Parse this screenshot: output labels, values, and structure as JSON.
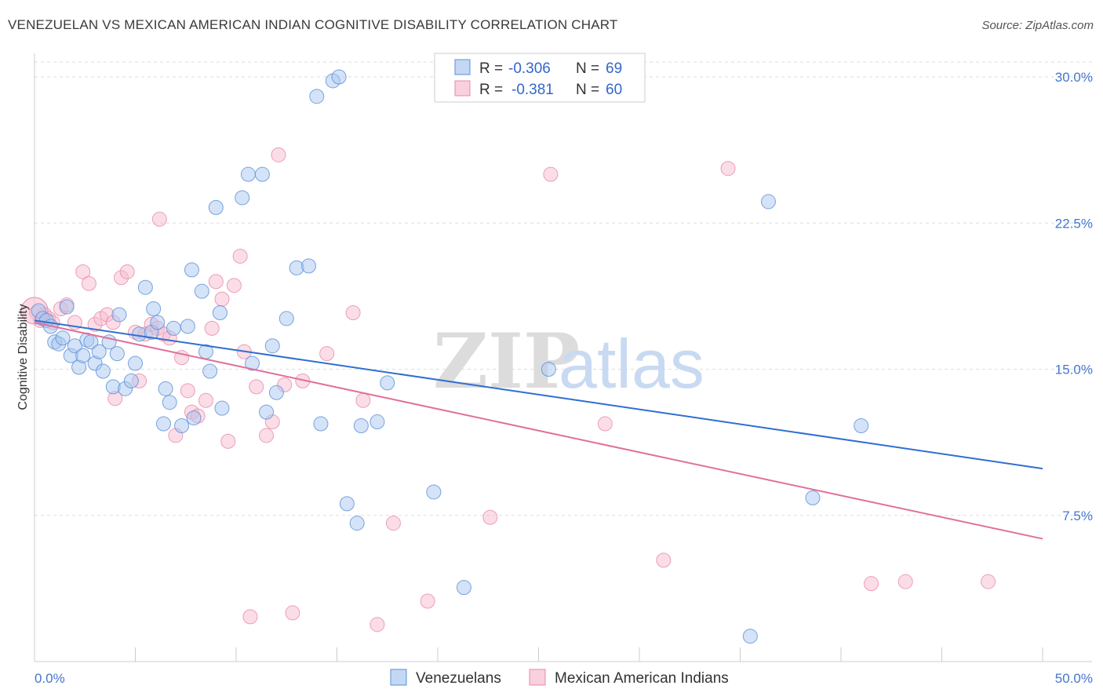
{
  "header": {
    "title": "VENEZUELAN VS MEXICAN AMERICAN INDIAN COGNITIVE DISABILITY CORRELATION CHART",
    "source": "Source: ZipAtlas.com"
  },
  "watermark": {
    "zip": "ZIP",
    "atlas": "atlas"
  },
  "colors": {
    "blue_fill": "#aac8f0",
    "blue_stroke": "#5b8fd8",
    "blue_line": "#2f6fcf",
    "pink_fill": "#f7bcd0",
    "pink_stroke": "#e889a8",
    "pink_line": "#e0709a",
    "tick_label": "#4477cc",
    "grid": "#dddddd"
  },
  "legend": {
    "r_label": "R =",
    "n_label": "N =",
    "entries": [
      {
        "r": "-0.306",
        "n": "69"
      },
      {
        "r": "-0.381",
        "n": "60"
      }
    ]
  },
  "chart_data": {
    "type": "scatter",
    "title": "VENEZUELAN VS MEXICAN AMERICAN INDIAN COGNITIVE DISABILITY CORRELATION CHART",
    "xlabel": "",
    "ylabel": "Cognitive Disability",
    "xlim": [
      0,
      50
    ],
    "ylim": [
      0,
      31
    ],
    "x_tick_labels": [
      "0.0%",
      "50.0%"
    ],
    "y_ticks": [
      7.5,
      15.0,
      22.5,
      30.0
    ],
    "y_tick_labels": [
      "7.5%",
      "15.0%",
      "22.5%",
      "30.0%"
    ],
    "grid": "horizontal dashed",
    "legend_position": "top-center",
    "series": [
      {
        "name": "Venezuelans",
        "color": "#aac8f0",
        "trend": {
          "x": [
            0,
            50
          ],
          "y": [
            17.5,
            9.9
          ]
        },
        "points": [
          [
            0.2,
            18.0
          ],
          [
            0.4,
            17.6
          ],
          [
            0.6,
            17.5
          ],
          [
            0.8,
            17.2
          ],
          [
            1.0,
            16.4
          ],
          [
            1.2,
            16.3
          ],
          [
            1.4,
            16.6
          ],
          [
            1.6,
            18.2
          ],
          [
            1.8,
            15.7
          ],
          [
            2.0,
            16.2
          ],
          [
            2.2,
            15.1
          ],
          [
            2.4,
            15.7
          ],
          [
            2.6,
            16.5
          ],
          [
            2.8,
            16.4
          ],
          [
            3.0,
            15.3
          ],
          [
            3.2,
            15.9
          ],
          [
            3.4,
            14.9
          ],
          [
            3.7,
            16.4
          ],
          [
            3.9,
            14.1
          ],
          [
            4.1,
            15.8
          ],
          [
            4.2,
            17.8
          ],
          [
            4.5,
            14.0
          ],
          [
            4.8,
            14.4
          ],
          [
            5.0,
            15.3
          ],
          [
            5.2,
            16.8
          ],
          [
            5.5,
            19.2
          ],
          [
            5.8,
            16.9
          ],
          [
            5.9,
            18.1
          ],
          [
            6.1,
            17.4
          ],
          [
            6.4,
            12.2
          ],
          [
            6.5,
            14.0
          ],
          [
            6.7,
            13.3
          ],
          [
            6.9,
            17.1
          ],
          [
            7.3,
            12.1
          ],
          [
            7.6,
            17.2
          ],
          [
            7.9,
            12.5
          ],
          [
            7.8,
            20.1
          ],
          [
            8.3,
            19.0
          ],
          [
            8.5,
            15.9
          ],
          [
            8.7,
            14.9
          ],
          [
            9.0,
            23.3
          ],
          [
            9.2,
            17.9
          ],
          [
            9.3,
            13.0
          ],
          [
            10.3,
            23.8
          ],
          [
            10.8,
            15.3
          ],
          [
            10.6,
            25.0
          ],
          [
            11.3,
            25.0
          ],
          [
            12.0,
            13.8
          ],
          [
            11.5,
            12.8
          ],
          [
            11.8,
            16.2
          ],
          [
            12.5,
            17.6
          ],
          [
            13.0,
            20.2
          ],
          [
            13.6,
            20.3
          ],
          [
            14.0,
            29.0
          ],
          [
            14.8,
            29.8
          ],
          [
            14.2,
            12.2
          ],
          [
            15.1,
            30.0
          ],
          [
            15.5,
            8.1
          ],
          [
            16.2,
            12.1
          ],
          [
            16.0,
            7.1
          ],
          [
            17.0,
            12.3
          ],
          [
            17.5,
            14.3
          ],
          [
            19.8,
            8.7
          ],
          [
            21.3,
            3.8
          ],
          [
            25.5,
            15.0
          ],
          [
            35.5,
            1.3
          ],
          [
            36.4,
            23.6
          ],
          [
            38.6,
            8.4
          ],
          [
            41.0,
            12.1
          ]
        ]
      },
      {
        "name": "Mexican American Indians",
        "color": "#f7bcd0",
        "trend": {
          "x": [
            0,
            50
          ],
          "y": [
            17.4,
            6.3
          ]
        },
        "points": [
          [
            0.1,
            17.9
          ],
          [
            0.3,
            17.5
          ],
          [
            0.5,
            17.8
          ],
          [
            0.7,
            17.6
          ],
          [
            0.9,
            17.4
          ],
          [
            1.3,
            18.1
          ],
          [
            1.6,
            18.3
          ],
          [
            2.0,
            17.4
          ],
          [
            2.4,
            20.0
          ],
          [
            2.7,
            19.4
          ],
          [
            3.0,
            17.3
          ],
          [
            3.3,
            17.6
          ],
          [
            3.6,
            17.8
          ],
          [
            3.9,
            17.4
          ],
          [
            4.0,
            13.5
          ],
          [
            4.3,
            19.7
          ],
          [
            4.6,
            20.0
          ],
          [
            5.0,
            16.9
          ],
          [
            5.2,
            14.4
          ],
          [
            5.5,
            16.8
          ],
          [
            5.8,
            17.3
          ],
          [
            6.1,
            17.1
          ],
          [
            6.4,
            16.8
          ],
          [
            6.2,
            22.7
          ],
          [
            6.7,
            16.6
          ],
          [
            7.0,
            11.6
          ],
          [
            7.3,
            15.6
          ],
          [
            7.6,
            13.9
          ],
          [
            7.8,
            12.8
          ],
          [
            8.1,
            12.6
          ],
          [
            8.5,
            13.4
          ],
          [
            8.8,
            17.1
          ],
          [
            9.0,
            19.5
          ],
          [
            9.3,
            18.6
          ],
          [
            9.6,
            11.3
          ],
          [
            9.9,
            19.3
          ],
          [
            10.2,
            20.8
          ],
          [
            10.4,
            15.9
          ],
          [
            10.7,
            2.3
          ],
          [
            11.0,
            14.1
          ],
          [
            11.5,
            11.6
          ],
          [
            11.8,
            12.3
          ],
          [
            12.1,
            26.0
          ],
          [
            12.4,
            14.2
          ],
          [
            12.8,
            2.5
          ],
          [
            13.3,
            14.4
          ],
          [
            14.5,
            15.8
          ],
          [
            15.8,
            17.9
          ],
          [
            16.3,
            13.4
          ],
          [
            17.0,
            1.9
          ],
          [
            17.8,
            7.1
          ],
          [
            19.5,
            3.1
          ],
          [
            22.6,
            7.4
          ],
          [
            25.6,
            25.0
          ],
          [
            28.3,
            12.2
          ],
          [
            31.2,
            5.2
          ],
          [
            34.4,
            25.3
          ],
          [
            41.5,
            4.0
          ],
          [
            43.2,
            4.1
          ],
          [
            47.3,
            4.1
          ]
        ]
      }
    ],
    "bottom_legend": [
      "Venezuelans",
      "Mexican American Indians"
    ]
  }
}
